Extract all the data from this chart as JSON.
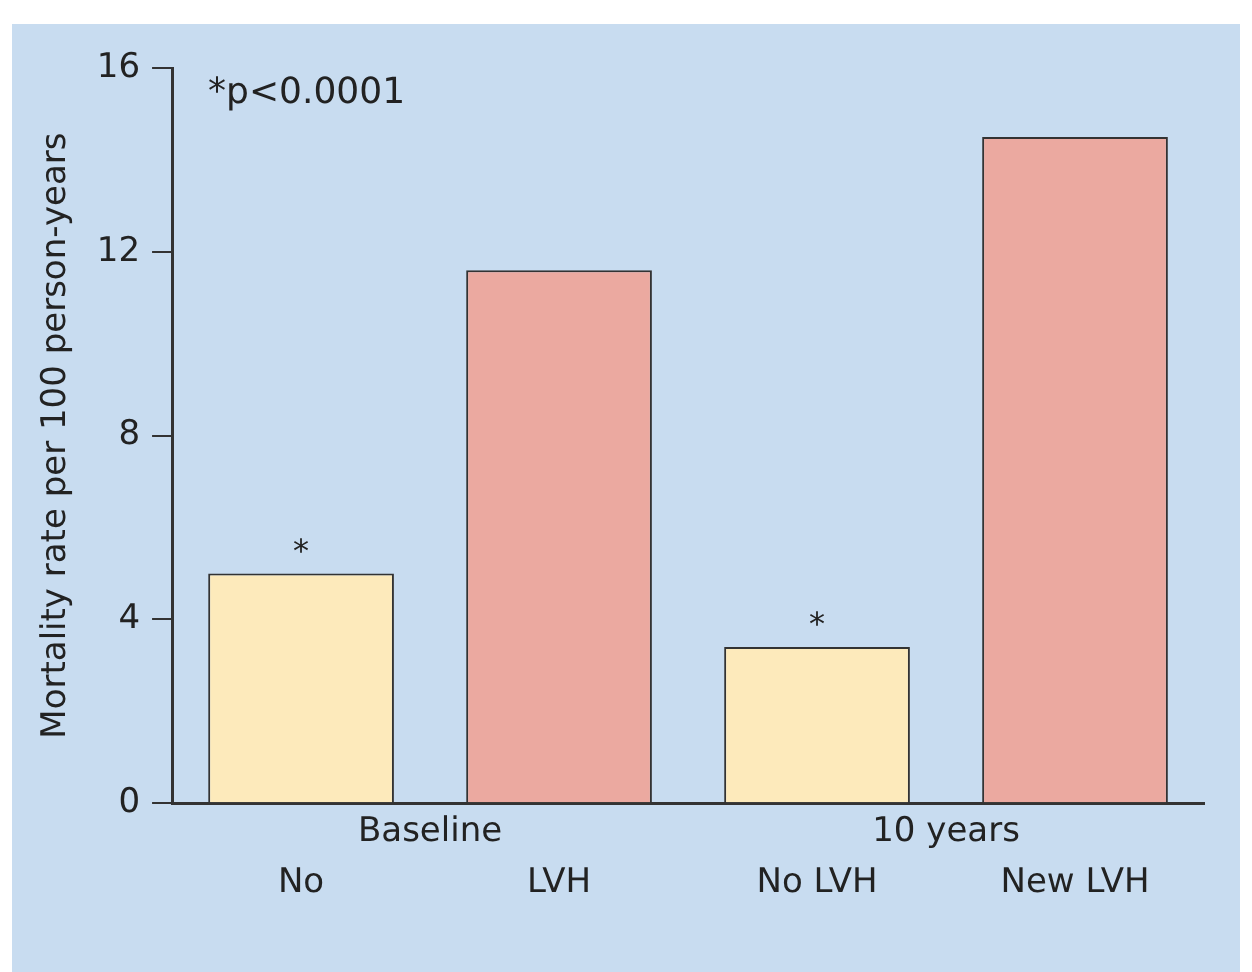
{
  "chart_data": {
    "type": "bar",
    "ylabel": "Mortality rate per 100 person-years",
    "categories": [
      "No",
      "LVH",
      "No LVH",
      "New LVH"
    ],
    "values": [
      5.0,
      11.6,
      3.4,
      14.5
    ],
    "colors": [
      "#fdeabb",
      "#eba9a0",
      "#fdeabb",
      "#eba9a0"
    ],
    "value_labels": [
      "*",
      null,
      "*",
      null
    ],
    "ylim": [
      0,
      16
    ],
    "yticks": [
      0,
      4,
      8,
      12,
      16
    ],
    "grid": false,
    "legend": false,
    "annotations": [
      "*p<0.0001",
      "Baseline",
      "10 years"
    ]
  }
}
